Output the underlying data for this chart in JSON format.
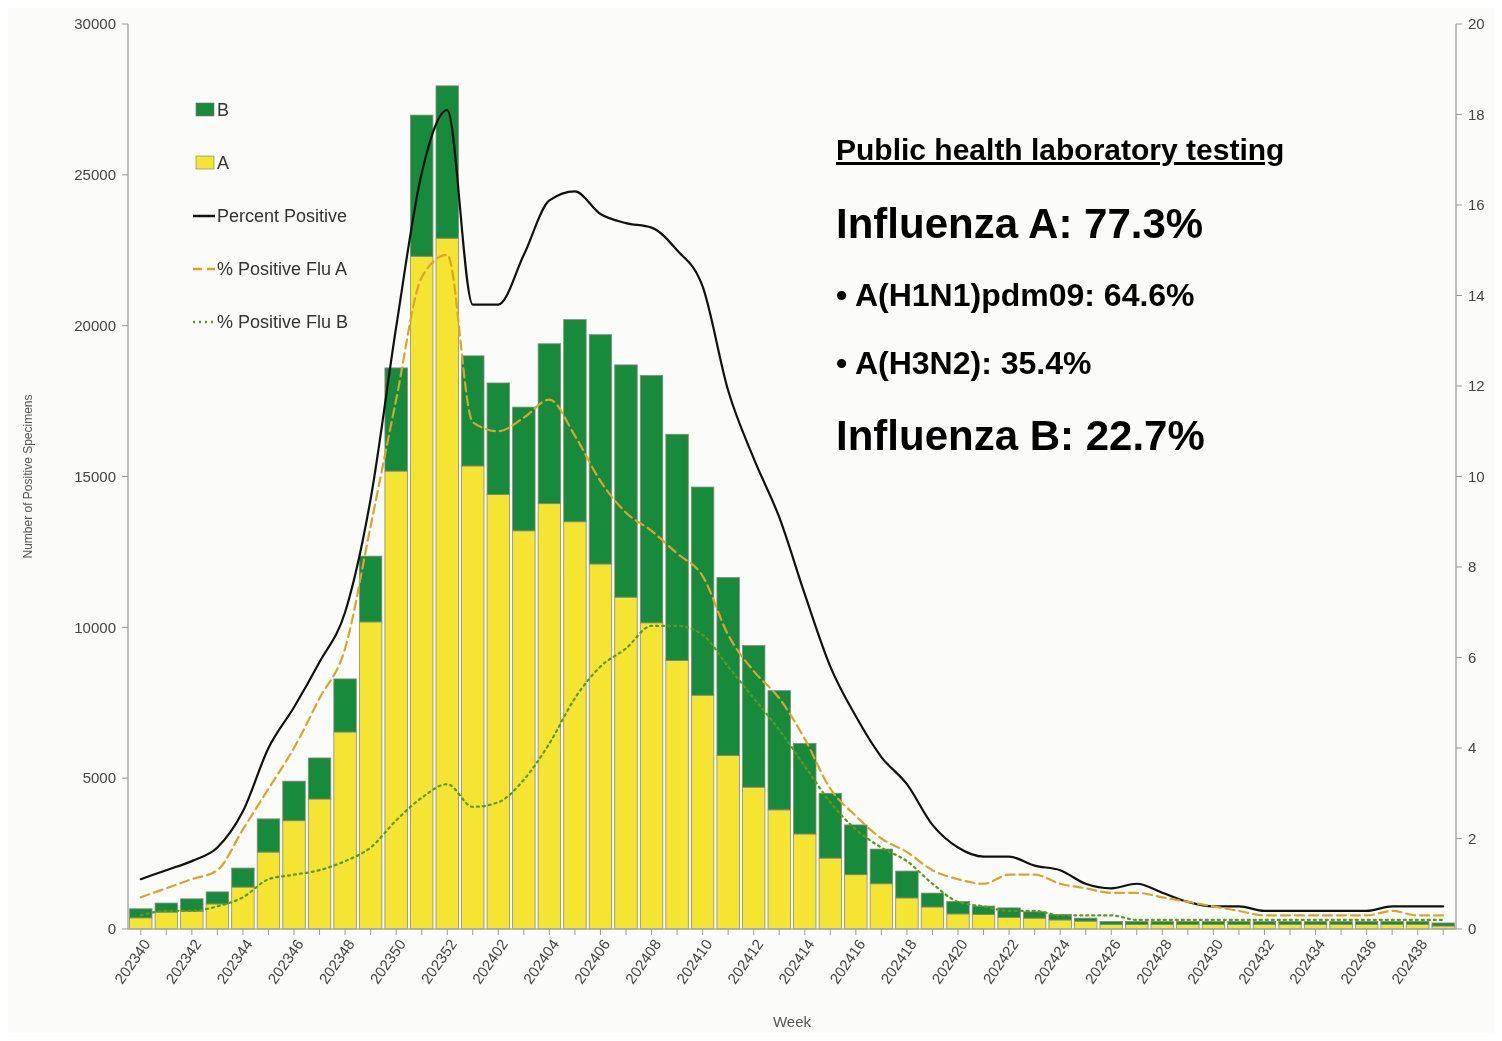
{
  "chart_data": {
    "type": "bar",
    "stacked": true,
    "xlabel": "Week",
    "ylabel": "Number of Positive Specimens",
    "categories": [
      "202340",
      null,
      "202342",
      null,
      "202344",
      null,
      "202346",
      null,
      "202348",
      null,
      "202350",
      null,
      "202352",
      null,
      "202402",
      null,
      "202404",
      null,
      "202406",
      null,
      "202408",
      null,
      "202410",
      null,
      "202412",
      null,
      "202414",
      null,
      "202416",
      null,
      "202418",
      null,
      "202420",
      null,
      "202422",
      null,
      "202424",
      null,
      "202426",
      null,
      "202428",
      null,
      "202430",
      null,
      "202432",
      null,
      "202434",
      null,
      "202436",
      null,
      "202438",
      null
    ],
    "ylim": [
      0,
      30000
    ],
    "yticks": [
      0,
      5000,
      10000,
      15000,
      20000,
      25000,
      30000
    ],
    "y2lim": [
      0,
      20
    ],
    "y2ticks": [
      0,
      2,
      4,
      6,
      8,
      10,
      12,
      14,
      16,
      18,
      20
    ],
    "legend": "top left",
    "grid": false,
    "series": [
      {
        "name": "A",
        "color": "#f5e431",
        "values": [
          370,
          560,
          590,
          830,
          1390,
          2550,
          3590,
          4310,
          6530,
          10180,
          15180,
          22300,
          22900,
          15350,
          14400,
          13200,
          14100,
          13500,
          12100,
          11000,
          10150,
          8900,
          7750,
          5750,
          4700,
          3950,
          3150,
          2350,
          1800,
          1500,
          1030,
          730,
          500,
          480,
          380,
          360,
          300,
          260,
          150,
          150,
          150,
          150,
          150,
          150,
          150,
          150,
          150,
          150,
          150,
          150,
          150,
          100
        ]
      },
      {
        "name": "B",
        "color": "#178a3c",
        "values": [
          300,
          300,
          410,
          400,
          630,
          1100,
          1310,
          1360,
          1760,
          2180,
          3420,
          4680,
          5050,
          3650,
          3700,
          4100,
          5300,
          6700,
          7600,
          7700,
          8200,
          7500,
          6900,
          5900,
          4700,
          3950,
          3000,
          2150,
          1650,
          1150,
          890,
          460,
          410,
          280,
          320,
          210,
          180,
          100,
          100,
          100,
          100,
          100,
          100,
          100,
          100,
          100,
          100,
          100,
          100,
          100,
          100,
          100
        ]
      },
      {
        "name": "Percent Positive",
        "type": "line",
        "axis": "y2",
        "color": "#111111",
        "line_style": "solid",
        "values": [
          1.1,
          1.3,
          1.5,
          1.8,
          2.6,
          4.0,
          4.9,
          5.9,
          7.0,
          9.5,
          13.3,
          16.7,
          18.1,
          13.8,
          13.8,
          14.9,
          16.1,
          16.3,
          15.8,
          15.6,
          15.5,
          15.0,
          14.2,
          11.9,
          10.4,
          9.1,
          7.4,
          5.8,
          4.7,
          3.8,
          3.2,
          2.3,
          1.8,
          1.6,
          1.6,
          1.4,
          1.3,
          1.0,
          0.9,
          1.0,
          0.8,
          0.6,
          0.5,
          0.5,
          0.4,
          0.4,
          0.4,
          0.4,
          0.4,
          0.5,
          0.5,
          0.5
        ]
      },
      {
        "name": "% Positive Flu A",
        "type": "line",
        "axis": "y2",
        "color": "#d9a52a",
        "line_style": "dashed",
        "values": [
          0.7,
          0.9,
          1.1,
          1.3,
          2.2,
          3.1,
          4.0,
          5.1,
          6.2,
          8.9,
          11.7,
          14.4,
          14.9,
          11.2,
          11.0,
          11.3,
          11.7,
          10.9,
          9.9,
          9.2,
          8.8,
          8.3,
          7.8,
          6.5,
          5.7,
          5.1,
          4.2,
          3.1,
          2.5,
          2.0,
          1.7,
          1.3,
          1.1,
          1.0,
          1.2,
          1.2,
          1.0,
          0.9,
          0.8,
          0.8,
          0.7,
          0.6,
          0.5,
          0.4,
          0.3,
          0.3,
          0.3,
          0.3,
          0.3,
          0.4,
          0.3,
          0.3
        ]
      },
      {
        "name": "% Positive Flu B",
        "type": "line",
        "axis": "y2",
        "color": "#5c9a1e",
        "line_style": "dotted",
        "values": [
          0.3,
          0.4,
          0.4,
          0.5,
          0.7,
          1.1,
          1.2,
          1.3,
          1.5,
          1.8,
          2.4,
          2.9,
          3.2,
          2.7,
          2.8,
          3.3,
          4.1,
          5.1,
          5.8,
          6.2,
          6.7,
          6.7,
          6.5,
          5.8,
          5.1,
          4.4,
          3.6,
          2.8,
          2.2,
          1.8,
          1.5,
          1.0,
          0.6,
          0.5,
          0.4,
          0.4,
          0.3,
          0.3,
          0.3,
          0.2,
          0.2,
          0.2,
          0.2,
          0.2,
          0.2,
          0.2,
          0.2,
          0.2,
          0.2,
          0.2,
          0.2,
          0.2
        ]
      }
    ],
    "annotations": [
      "Public health laboratory testing",
      "Influenza A: 77.3%",
      "• A(H1N1)pdm09: 64.6%",
      "• A(H3N2): 35.4%",
      "Influenza B: 22.7%"
    ]
  }
}
